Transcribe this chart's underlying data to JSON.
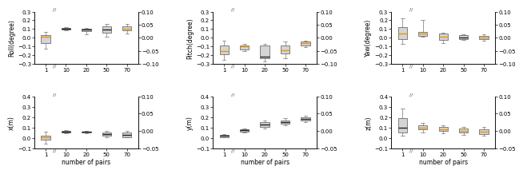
{
  "fig_width": 6.4,
  "fig_height": 2.35,
  "cat_labels": [
    "1",
    "10",
    "20",
    "50",
    "70"
  ],
  "subplots": [
    {
      "ylabel": "Roll(degree)",
      "ylim": [
        -0.3,
        0.3
      ],
      "yticks": [
        -0.3,
        -0.2,
        -0.1,
        0.0,
        0.1,
        0.2,
        0.3
      ],
      "right_ylim": [
        -0.1,
        0.1
      ],
      "right_yticks": [
        -0.1,
        -0.05,
        0.0,
        0.05,
        0.1
      ],
      "boxes": [
        {
          "q1": -0.06,
          "median": 0.01,
          "q3": 0.03,
          "whislo": -0.13,
          "whishi": 0.07,
          "med_orange": true
        },
        {
          "q1": 0.095,
          "median": 0.105,
          "q3": 0.115,
          "whislo": 0.085,
          "whishi": 0.12,
          "med_orange": false
        },
        {
          "q1": 0.075,
          "median": 0.095,
          "q3": 0.105,
          "whislo": 0.035,
          "whishi": 0.115,
          "med_orange": false
        },
        {
          "q1": 0.055,
          "median": 0.09,
          "q3": 0.135,
          "whislo": 0.015,
          "whishi": 0.16,
          "med_orange": false
        },
        {
          "q1": 0.085,
          "median": 0.105,
          "q3": 0.135,
          "whislo": 0.05,
          "whishi": 0.16,
          "med_orange": true
        }
      ]
    },
    {
      "ylabel": "Pitch(degree)",
      "ylim": [
        -0.3,
        0.3
      ],
      "yticks": [
        -0.3,
        -0.2,
        -0.1,
        0.0,
        0.1,
        0.2,
        0.3
      ],
      "right_ylim": [
        -0.1,
        0.1
      ],
      "right_yticks": [
        -0.1,
        -0.05,
        0.0,
        0.05,
        0.1
      ],
      "boxes": [
        {
          "q1": -0.19,
          "median": -0.15,
          "q3": -0.09,
          "whislo": -0.25,
          "whishi": -0.03,
          "med_orange": true
        },
        {
          "q1": -0.135,
          "median": -0.1,
          "q3": -0.085,
          "whislo": -0.15,
          "whishi": -0.07,
          "med_orange": true
        },
        {
          "q1": -0.24,
          "median": -0.22,
          "q3": -0.09,
          "whislo": -0.275,
          "whishi": -0.07,
          "med_orange": false
        },
        {
          "q1": -0.18,
          "median": -0.14,
          "q3": -0.085,
          "whislo": -0.24,
          "whishi": -0.04,
          "med_orange": true
        },
        {
          "q1": -0.09,
          "median": -0.06,
          "q3": -0.045,
          "whislo": -0.11,
          "whishi": -0.03,
          "med_orange": true
        }
      ]
    },
    {
      "ylabel": "Yaw(degree)",
      "ylim": [
        -0.3,
        0.3
      ],
      "yticks": [
        -0.3,
        -0.2,
        -0.1,
        0.0,
        0.1,
        0.2,
        0.3
      ],
      "right_ylim": [
        -0.1,
        0.1
      ],
      "right_yticks": [
        -0.1,
        -0.05,
        0.0,
        0.05,
        0.1
      ],
      "boxes": [
        {
          "q1": -0.02,
          "median": 0.045,
          "q3": 0.12,
          "whislo": -0.07,
          "whishi": 0.22,
          "med_orange": true
        },
        {
          "q1": 0.025,
          "median": 0.05,
          "q3": 0.07,
          "whislo": 0.01,
          "whishi": 0.2,
          "med_orange": true
        },
        {
          "q1": -0.025,
          "median": 0.01,
          "q3": 0.045,
          "whislo": -0.06,
          "whishi": 0.06,
          "med_orange": true
        },
        {
          "q1": -0.015,
          "median": 0.005,
          "q3": 0.03,
          "whislo": -0.025,
          "whishi": 0.04,
          "med_orange": false
        },
        {
          "q1": -0.02,
          "median": 0.005,
          "q3": 0.025,
          "whislo": -0.03,
          "whishi": 0.04,
          "med_orange": true
        }
      ]
    },
    {
      "ylabel": "x(m)",
      "ylim": [
        -0.1,
        0.4
      ],
      "yticks": [
        -0.1,
        0.0,
        0.1,
        0.2,
        0.3,
        0.4
      ],
      "right_ylim": [
        -0.05,
        0.1
      ],
      "right_yticks": [
        -0.05,
        0.0,
        0.05,
        0.1
      ],
      "boxes": [
        {
          "q1": -0.015,
          "median": 0.01,
          "q3": 0.025,
          "whislo": -0.05,
          "whishi": 0.06,
          "med_orange": true
        },
        {
          "q1": 0.053,
          "median": 0.063,
          "q3": 0.068,
          "whislo": 0.048,
          "whishi": 0.073,
          "med_orange": false
        },
        {
          "q1": 0.053,
          "median": 0.058,
          "q3": 0.063,
          "whislo": 0.048,
          "whishi": 0.068,
          "med_orange": false
        },
        {
          "q1": 0.02,
          "median": 0.04,
          "q3": 0.055,
          "whislo": 0.01,
          "whishi": 0.07,
          "med_orange": false
        },
        {
          "q1": 0.01,
          "median": 0.03,
          "q3": 0.05,
          "whislo": 0.005,
          "whishi": 0.065,
          "med_orange": false
        }
      ]
    },
    {
      "ylabel": "y(m)",
      "ylim": [
        -0.1,
        0.4
      ],
      "yticks": [
        -0.1,
        0.0,
        0.1,
        0.2,
        0.3,
        0.4
      ],
      "right_ylim": [
        -0.05,
        0.1
      ],
      "right_yticks": [
        -0.05,
        0.0,
        0.05,
        0.1
      ],
      "boxes": [
        {
          "q1": 0.01,
          "median": 0.02,
          "q3": 0.03,
          "whislo": 0.005,
          "whishi": 0.04,
          "med_orange": false
        },
        {
          "q1": 0.06,
          "median": 0.075,
          "q3": 0.085,
          "whislo": 0.055,
          "whishi": 0.09,
          "med_orange": false
        },
        {
          "q1": 0.11,
          "median": 0.13,
          "q3": 0.155,
          "whislo": 0.09,
          "whishi": 0.17,
          "med_orange": false
        },
        {
          "q1": 0.14,
          "median": 0.155,
          "q3": 0.17,
          "whislo": 0.12,
          "whishi": 0.19,
          "med_orange": false
        },
        {
          "q1": 0.17,
          "median": 0.185,
          "q3": 0.2,
          "whislo": 0.15,
          "whishi": 0.21,
          "med_orange": false
        }
      ]
    },
    {
      "ylabel": "z(m)",
      "ylim": [
        -0.1,
        0.4
      ],
      "yticks": [
        -0.1,
        0.0,
        0.1,
        0.2,
        0.3,
        0.4
      ],
      "right_ylim": [
        -0.05,
        0.1
      ],
      "right_yticks": [
        -0.05,
        0.0,
        0.05,
        0.1
      ],
      "boxes": [
        {
          "q1": 0.055,
          "median": 0.1,
          "q3": 0.19,
          "whislo": 0.02,
          "whishi": 0.28,
          "med_orange": false
        },
        {
          "q1": 0.08,
          "median": 0.1,
          "q3": 0.125,
          "whislo": 0.055,
          "whishi": 0.145,
          "med_orange": true
        },
        {
          "q1": 0.065,
          "median": 0.085,
          "q3": 0.105,
          "whislo": 0.045,
          "whishi": 0.125,
          "med_orange": true
        },
        {
          "q1": 0.05,
          "median": 0.07,
          "q3": 0.09,
          "whislo": 0.03,
          "whishi": 0.11,
          "med_orange": true
        },
        {
          "q1": 0.04,
          "median": 0.06,
          "q3": 0.085,
          "whislo": 0.025,
          "whishi": 0.105,
          "med_orange": true
        }
      ]
    }
  ],
  "xlabel": "number of pairs",
  "box_facecolor": "#d4d4d4",
  "box_edgecolor": "#555555",
  "whisker_color": "#777777",
  "median_orange": "#e8960a",
  "median_black": "#222222",
  "fontsize_label": 5.5,
  "fontsize_tick": 5.0,
  "break_symbol_top": "/ /",
  "break_symbol_bot": "/ /"
}
